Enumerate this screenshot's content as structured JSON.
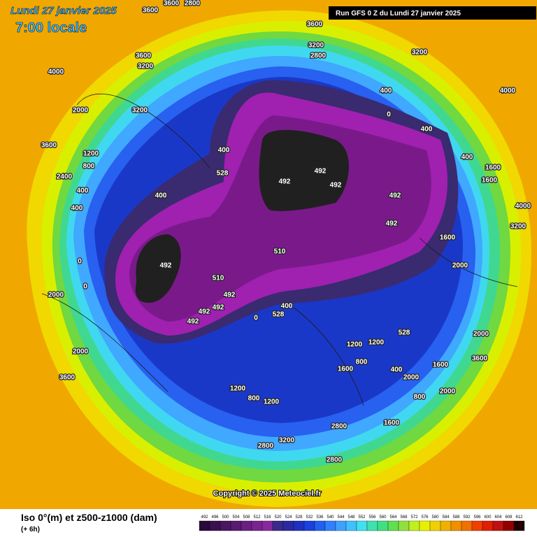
{
  "header": {
    "date": "Lundi 27 janvier 2025",
    "time": "7:00 locale",
    "run": "Run GFS 0 Z du Lundi 27 janvier 2025"
  },
  "copyright": "Copyright © 2025 Meteociel.fr",
  "footer": {
    "title": "Iso 0°(m) et z500-z1000 (dam)",
    "lead": "(+ 6h)"
  },
  "colorbar": {
    "labels": [
      "492",
      "496",
      "500",
      "504",
      "508",
      "512",
      "516",
      "520",
      "524",
      "528",
      "532",
      "536",
      "540",
      "544",
      "548",
      "552",
      "556",
      "560",
      "564",
      "568",
      "572",
      "576",
      "580",
      "584",
      "588",
      "592",
      "596",
      "600",
      "604",
      "608",
      "612"
    ],
    "colors": [
      "#2a0a3a",
      "#3a1050",
      "#4a1660",
      "#5a1a70",
      "#6a2080",
      "#7a2490",
      "#8a28a0",
      "#3a2a8a",
      "#2a2aa0",
      "#1e30c0",
      "#1a40e0",
      "#2060f0",
      "#3080ff",
      "#40a0ff",
      "#40c0ff",
      "#40e0f0",
      "#40e0b0",
      "#40e080",
      "#60e050",
      "#90e040",
      "#c0f020",
      "#e8f000",
      "#f0d000",
      "#f0b000",
      "#f09000",
      "#f07000",
      "#f04000",
      "#e02000",
      "#c01010",
      "#900000",
      "#200000"
    ]
  },
  "contour_labels": [
    "3600",
    "3600",
    "2800",
    "3600",
    "3200",
    "2800",
    "3200",
    "4000",
    "3600",
    "3200",
    "2000",
    "3200",
    "3600",
    "1200",
    "800",
    "2400",
    "400",
    "400",
    "400",
    "528",
    "400",
    "492",
    "492",
    "492",
    "492",
    "492",
    "510",
    "492",
    "510",
    "492",
    "492",
    "492",
    "492",
    "400",
    "528",
    "0",
    "528",
    "400",
    "0",
    "400",
    "400",
    "1600",
    "1600",
    "4000",
    "4000",
    "3200",
    "0",
    "0",
    "2000",
    "2000",
    "3600",
    "1200",
    "1200",
    "800",
    "1200",
    "1200",
    "1600",
    "800",
    "400",
    "2000",
    "1600",
    "2000",
    "800",
    "1600",
    "2800",
    "3200",
    "2800",
    "2800",
    "2000",
    "3600",
    "1600",
    "2000"
  ]
}
